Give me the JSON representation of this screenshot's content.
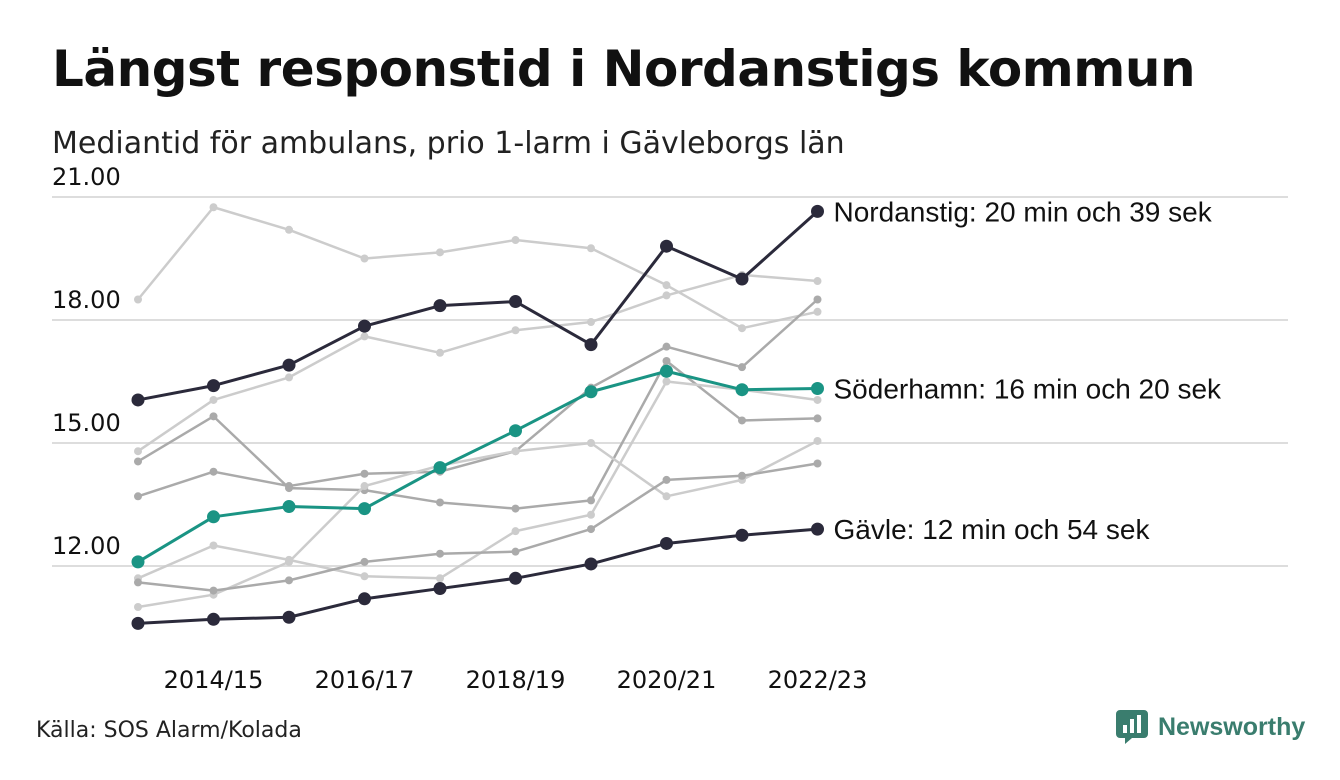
{
  "title": "Längst responstid i Nordanstigs kommun",
  "subtitle": "Mediantid för ambulans, prio 1-larm i Gävleborgs län",
  "source": "Källa: SOS Alarm/Kolada",
  "brand": {
    "name": "Newsworthy",
    "icon": "newsworthy-logo-icon",
    "color": "#3a7d6e"
  },
  "chart_data": {
    "type": "line",
    "x": [
      "2013/14",
      "2014/15",
      "2015/16",
      "2016/17",
      "2017/18",
      "2018/19",
      "2019/20",
      "2020/21",
      "2021/22",
      "2022/23"
    ],
    "x_tick_labels": [
      "2014/15",
      "2016/17",
      "2018/19",
      "2020/21",
      "2022/23"
    ],
    "y_ticks": [
      12,
      15,
      18,
      21
    ],
    "y_tick_labels": [
      "12.00",
      "15.00",
      "18.00",
      "21.00"
    ],
    "ylim": [
      9.8,
      21.6
    ],
    "grid": true,
    "colors": {
      "highlight_dark": "#2b2a3b",
      "highlight_teal": "#1a9484",
      "light": "#cccccc",
      "mid": "#aaaaaa",
      "grid": "#dddddd"
    },
    "series": [
      {
        "name": "Nordanstig",
        "label": "Nordanstig: 20 min och 39 sek",
        "highlight": "dark",
        "values": [
          16.05,
          16.4,
          16.9,
          17.85,
          18.35,
          18.45,
          17.4,
          19.8,
          19.0,
          20.65
        ]
      },
      {
        "name": "Söderhamn",
        "label": "Söderhamn: 16 min och 20 sek",
        "highlight": "teal",
        "values": [
          12.1,
          13.2,
          13.45,
          13.4,
          14.4,
          15.3,
          16.25,
          16.75,
          16.3,
          16.33
        ]
      },
      {
        "name": "Gävle",
        "label": "Gävle: 12 min och 54 sek",
        "highlight": "dark",
        "values": [
          10.6,
          10.7,
          10.75,
          11.2,
          11.45,
          11.7,
          12.05,
          12.55,
          12.75,
          12.9
        ]
      },
      {
        "tone": "light",
        "values": [
          18.5,
          20.75,
          20.2,
          19.5,
          19.65,
          19.95,
          19.75,
          18.85,
          17.8,
          18.2
        ]
      },
      {
        "tone": "light",
        "values": [
          14.8,
          16.05,
          16.6,
          17.6,
          17.2,
          17.75,
          17.95,
          18.6,
          19.1,
          18.95
        ]
      },
      {
        "tone": "mid",
        "values": [
          14.55,
          15.65,
          13.9,
          13.85,
          13.55,
          13.4,
          13.6,
          17.0,
          15.55,
          15.6
        ]
      },
      {
        "tone": "mid",
        "values": [
          13.7,
          14.3,
          13.95,
          14.25,
          14.3,
          14.8,
          16.35,
          17.35,
          16.85,
          18.5
        ]
      },
      {
        "tone": "light",
        "values": [
          11.7,
          12.5,
          12.15,
          11.75,
          11.7,
          12.85,
          13.25,
          16.5,
          16.3,
          16.05
        ]
      },
      {
        "tone": "light",
        "values": [
          11.0,
          11.3,
          12.1,
          13.95,
          14.45,
          14.8,
          15.0,
          13.7,
          14.1,
          15.05
        ]
      },
      {
        "tone": "mid",
        "values": [
          11.6,
          11.4,
          11.65,
          12.1,
          12.3,
          12.35,
          12.9,
          14.1,
          14.2,
          14.5
        ]
      }
    ]
  }
}
